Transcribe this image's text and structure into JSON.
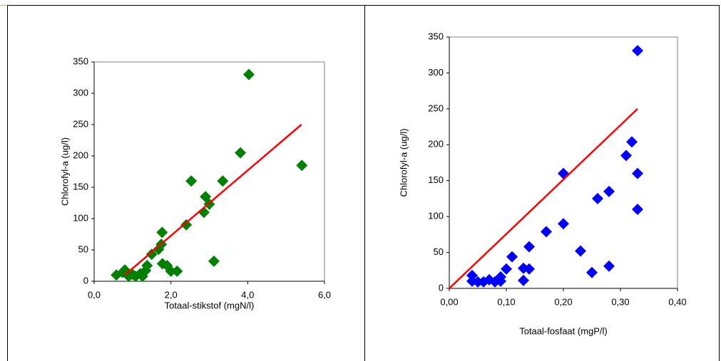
{
  "chart_data": [
    {
      "type": "scatter",
      "x_label": "Totaal-stikstof (mgN/l)",
      "y_label": "Chlorofyl-a (ug/l)",
      "xlim": [
        0,
        6
      ],
      "ylim": [
        0,
        350
      ],
      "xticks": [
        {
          "value": 0,
          "label": "0,0"
        },
        {
          "value": 2,
          "label": "2,0"
        },
        {
          "value": 4,
          "label": "4,0"
        },
        {
          "value": 6,
          "label": "6,0"
        }
      ],
      "yticks": [
        0,
        50,
        100,
        150,
        200,
        250,
        300,
        350
      ],
      "points": {
        "color": "#008000",
        "x": [
          0.58,
          0.74,
          0.8,
          0.9,
          1.0,
          1.08,
          1.2,
          1.26,
          1.34,
          1.38,
          1.5,
          1.68,
          1.75,
          1.77,
          1.78,
          1.9,
          2.0,
          2.16,
          2.4,
          2.53,
          2.86,
          2.9,
          3.0,
          3.12,
          3.35,
          3.81,
          4.03,
          5.41
        ],
        "y": [
          10,
          14,
          18,
          8,
          11,
          8,
          12,
          8,
          17,
          25,
          43,
          51,
          59,
          78,
          28,
          25,
          16,
          16,
          90,
          160,
          110,
          135,
          123,
          32,
          160,
          205,
          330,
          185
        ]
      },
      "trend": {
        "color": "#ff0000",
        "x": [
          0.8,
          5.4
        ],
        "y": [
          10,
          250
        ]
      }
    },
    {
      "type": "scatter",
      "x_label": "Totaal-fosfaat (mgP/l)",
      "y_label": "Chlorofyl-a (ug/l)",
      "xlim": [
        0,
        0.4
      ],
      "ylim": [
        0,
        350
      ],
      "xticks": [
        {
          "value": 0,
          "label": "0,00"
        },
        {
          "value": 0.1,
          "label": "0,10"
        },
        {
          "value": 0.2,
          "label": "0,20"
        },
        {
          "value": 0.3,
          "label": "0,30"
        },
        {
          "value": 0.4,
          "label": "0,40"
        }
      ],
      "yticks": [
        0,
        50,
        100,
        150,
        200,
        250,
        300,
        350
      ],
      "points": {
        "color": "#0000ff",
        "x": [
          0.04,
          0.04,
          0.05,
          0.06,
          0.07,
          0.08,
          0.09,
          0.09,
          0.1,
          0.11,
          0.13,
          0.13,
          0.14,
          0.14,
          0.17,
          0.2,
          0.2,
          0.23,
          0.25,
          0.26,
          0.28,
          0.28,
          0.31,
          0.32,
          0.33,
          0.33,
          0.33
        ],
        "y": [
          18,
          10,
          9,
          9,
          12,
          9,
          10,
          16,
          27,
          44,
          28,
          11,
          58,
          27,
          79,
          160,
          90,
          52,
          22,
          125,
          135,
          31,
          185,
          204,
          160,
          110,
          331
        ]
      },
      "trend": {
        "color": "#ff0000",
        "x": [
          0,
          0.33
        ],
        "y": [
          0,
          250
        ]
      }
    }
  ]
}
